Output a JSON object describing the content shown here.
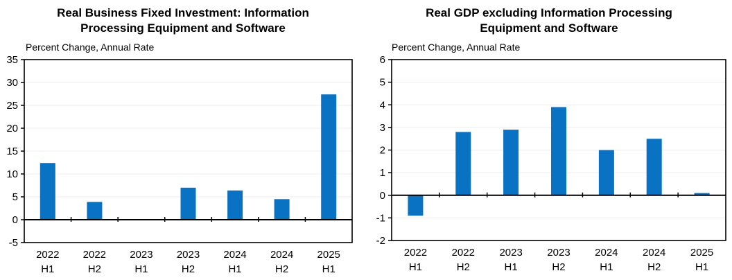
{
  "chart_data": [
    {
      "type": "bar",
      "title": "Real Business Fixed Investment: Information\nProcessing Equipment and Software",
      "subtitle": "Percent Change, Annual Rate",
      "categories": [
        "2022 H1",
        "2022 H2",
        "2023 H1",
        "2023 H2",
        "2024 H1",
        "2024 H2",
        "2025 H1"
      ],
      "values": [
        12.4,
        3.9,
        0.1,
        7.0,
        6.4,
        4.5,
        27.4
      ],
      "ylim": [
        -5,
        35
      ],
      "y_ticks": [
        -5,
        0,
        5,
        10,
        15,
        20,
        25,
        30,
        35
      ],
      "xlabel": "",
      "ylabel": "Percent Change, Annual Rate",
      "bar_color": "#0A72C2",
      "grid": true,
      "zero_line": true,
      "legend": "none"
    },
    {
      "type": "bar",
      "title": "Real GDP excluding Information Processing\nEquipment and Software",
      "subtitle": "Percent Change, Annual Rate",
      "categories": [
        "2022 H1",
        "2022 H2",
        "2023 H1",
        "2023 H2",
        "2024 H1",
        "2024 H2",
        "2025 H1"
      ],
      "values": [
        -0.9,
        2.8,
        2.9,
        3.9,
        2.0,
        2.5,
        0.1
      ],
      "ylim": [
        -2,
        6
      ],
      "y_ticks": [
        -2,
        -1,
        0,
        1,
        2,
        3,
        4,
        5,
        6
      ],
      "xlabel": "",
      "ylabel": "Percent Change, Annual Rate",
      "bar_color": "#0A72C2",
      "grid": true,
      "zero_line": true,
      "legend": "none"
    }
  ],
  "colors": {
    "bar": "#0A72C2",
    "axis": "#000000",
    "gridline": "#EDEDED",
    "background": "#FFFFFF",
    "text": "#000000"
  }
}
